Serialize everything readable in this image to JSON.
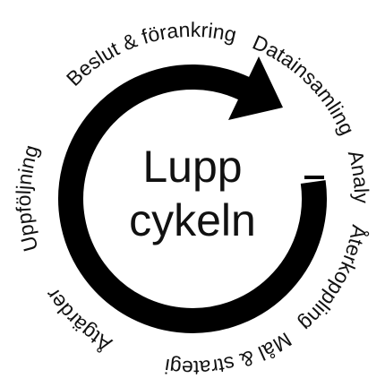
{
  "center": {
    "lines": [
      "Lupp",
      "cykeln"
    ]
  },
  "cycle": {
    "steps": [
      {
        "label": "Beslut & förankring"
      },
      {
        "label": "Datainsamling"
      },
      {
        "label": "Analys"
      },
      {
        "label": "Återkoppling"
      },
      {
        "label": "Mål & strategi"
      },
      {
        "label": "Åtgärder"
      },
      {
        "label": "Uppföljning"
      }
    ]
  }
}
